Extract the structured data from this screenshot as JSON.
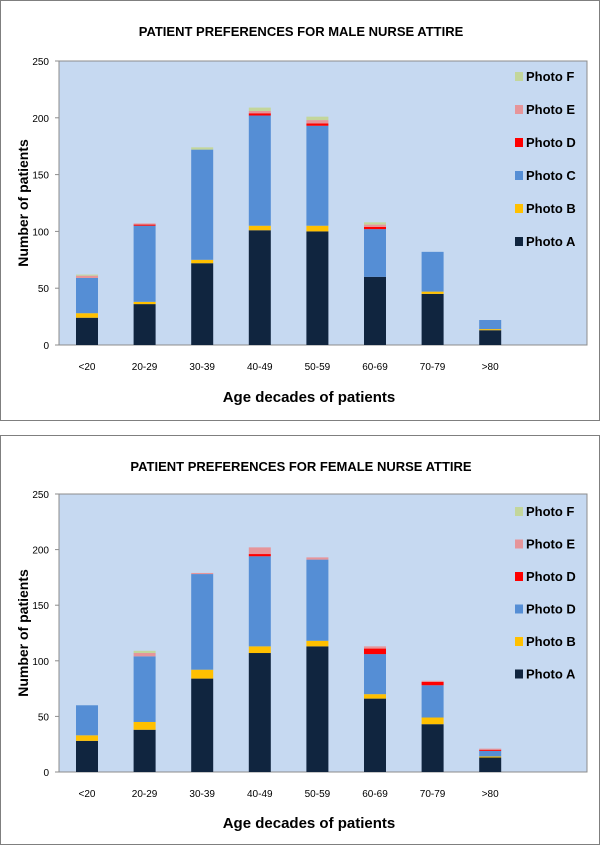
{
  "chart_data": [
    {
      "type": "bar",
      "stacked": true,
      "title": "PATIENT PREFERENCES FOR MALE NURSE ATTIRE",
      "xlabel": "Age decades of patients",
      "ylabel": "Number of patients",
      "ylim": [
        0,
        250
      ],
      "yticks": [
        0,
        50,
        100,
        150,
        200,
        250
      ],
      "grid": false,
      "legend_position": "right",
      "categories": [
        "<20",
        "20-29",
        "30-39",
        "40-49",
        "50-59",
        "60-69",
        "70-79",
        ">80"
      ],
      "series": [
        {
          "name": "Photo A",
          "color": "#10253F",
          "values": [
            24,
            36,
            72,
            101,
            100,
            60,
            45,
            13
          ]
        },
        {
          "name": "Photo B",
          "color": "#FFC000",
          "values": [
            4,
            2,
            3,
            4,
            5,
            0,
            2,
            1
          ]
        },
        {
          "name": "Photo C",
          "color": "#558ED5",
          "values": [
            31,
            67,
            97,
            97,
            88,
            42,
            35,
            8
          ]
        },
        {
          "name": "Photo D",
          "color": "#FF0000",
          "values": [
            0,
            1,
            0,
            2,
            2,
            2,
            0,
            0
          ]
        },
        {
          "name": "Photo E",
          "color": "#E6959A",
          "values": [
            2,
            1,
            0,
            2,
            3,
            2,
            0,
            0
          ]
        },
        {
          "name": "Photo F",
          "color": "#C3D69B",
          "values": [
            1,
            0,
            2,
            3,
            3,
            2,
            0,
            0
          ]
        }
      ]
    },
    {
      "type": "bar",
      "stacked": true,
      "title": "PATIENT PREFERENCES FOR FEMALE NURSE ATTIRE",
      "xlabel": "Age decades of patients",
      "ylabel": "Number of patients",
      "ylim": [
        0,
        250
      ],
      "yticks": [
        0,
        50,
        100,
        150,
        200,
        250
      ],
      "grid": false,
      "legend_position": "right",
      "categories": [
        "<20",
        "20-29",
        "30-39",
        "40-49",
        "50-59",
        "60-69",
        "70-79",
        ">80"
      ],
      "series": [
        {
          "name": "Photo A",
          "color": "#10253F",
          "values": [
            28,
            38,
            84,
            107,
            113,
            66,
            43,
            13
          ]
        },
        {
          "name": "Photo B",
          "color": "#FFC000",
          "values": [
            5,
            7,
            8,
            6,
            5,
            4,
            6,
            1
          ]
        },
        {
          "name": "Photo D",
          "color": "#558ED5",
          "values": [
            27,
            59,
            86,
            81,
            73,
            36,
            29,
            5
          ]
        },
        {
          "name": "Photo D",
          "color": "#FF0000",
          "values": [
            0,
            0,
            0,
            2,
            0,
            5,
            3,
            1
          ]
        },
        {
          "name": "Photo E",
          "color": "#E6959A",
          "values": [
            0,
            3,
            1,
            6,
            2,
            2,
            1,
            1
          ]
        },
        {
          "name": "Photo F",
          "color": "#C3D69B",
          "values": [
            0,
            2,
            0,
            0,
            0,
            0,
            0,
            0
          ]
        }
      ]
    }
  ]
}
